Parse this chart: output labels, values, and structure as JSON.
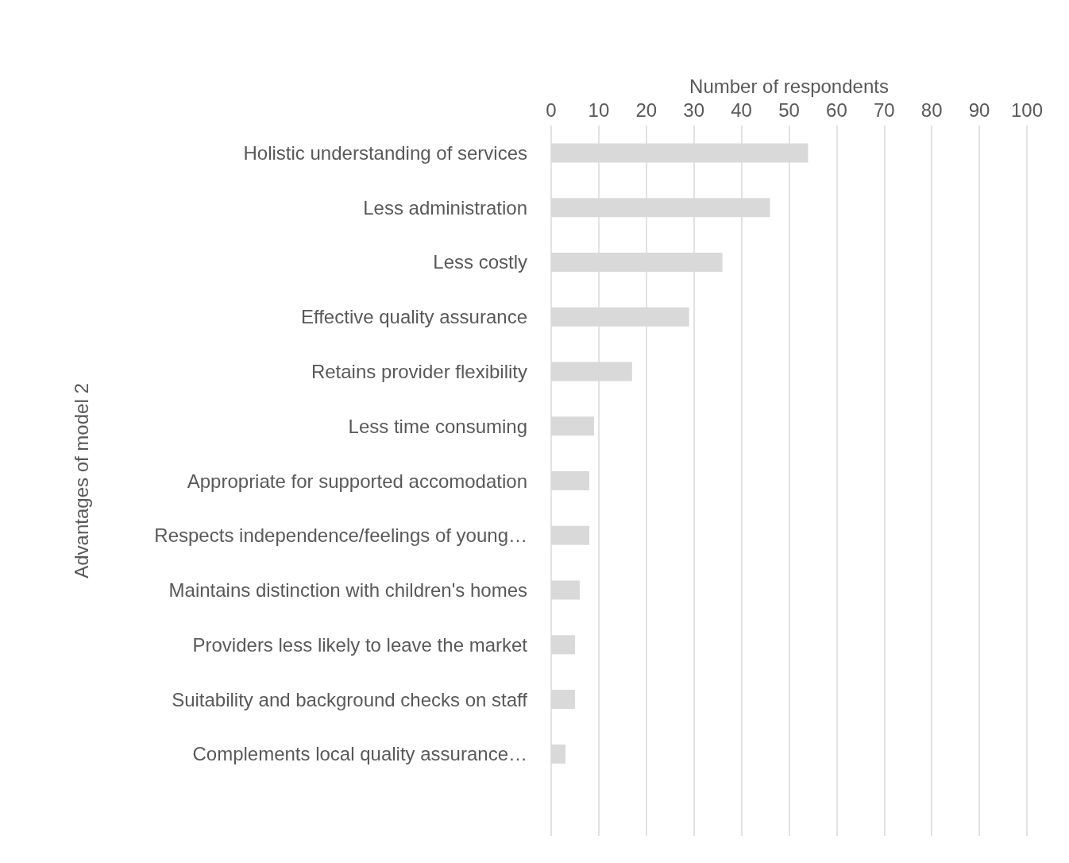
{
  "chart_data": {
    "type": "bar",
    "orientation": "horizontal",
    "xlabel": "Number of respondents",
    "ylabel": "Advantages of model 2",
    "categories": [
      "Holistic understanding of services",
      "Less administration",
      "Less costly",
      "Effective quality assurance",
      "Retains provider flexibility",
      "Less time consuming",
      "Appropriate for supported accomodation",
      "Respects independence/feelings of young…",
      "Maintains distinction with children's homes",
      "Providers less likely to leave the market",
      "Suitability and background checks on staff",
      "Complements local quality assurance…",
      null
    ],
    "values": [
      54,
      46,
      36,
      29,
      17,
      9,
      8,
      8,
      6,
      5,
      5,
      3,
      null
    ],
    "color": "#d9d9d9",
    "xlim": [
      0,
      100
    ],
    "xticks": [
      0,
      10,
      20,
      30,
      40,
      50,
      60,
      70,
      80,
      90,
      100
    ],
    "grid": "x"
  }
}
